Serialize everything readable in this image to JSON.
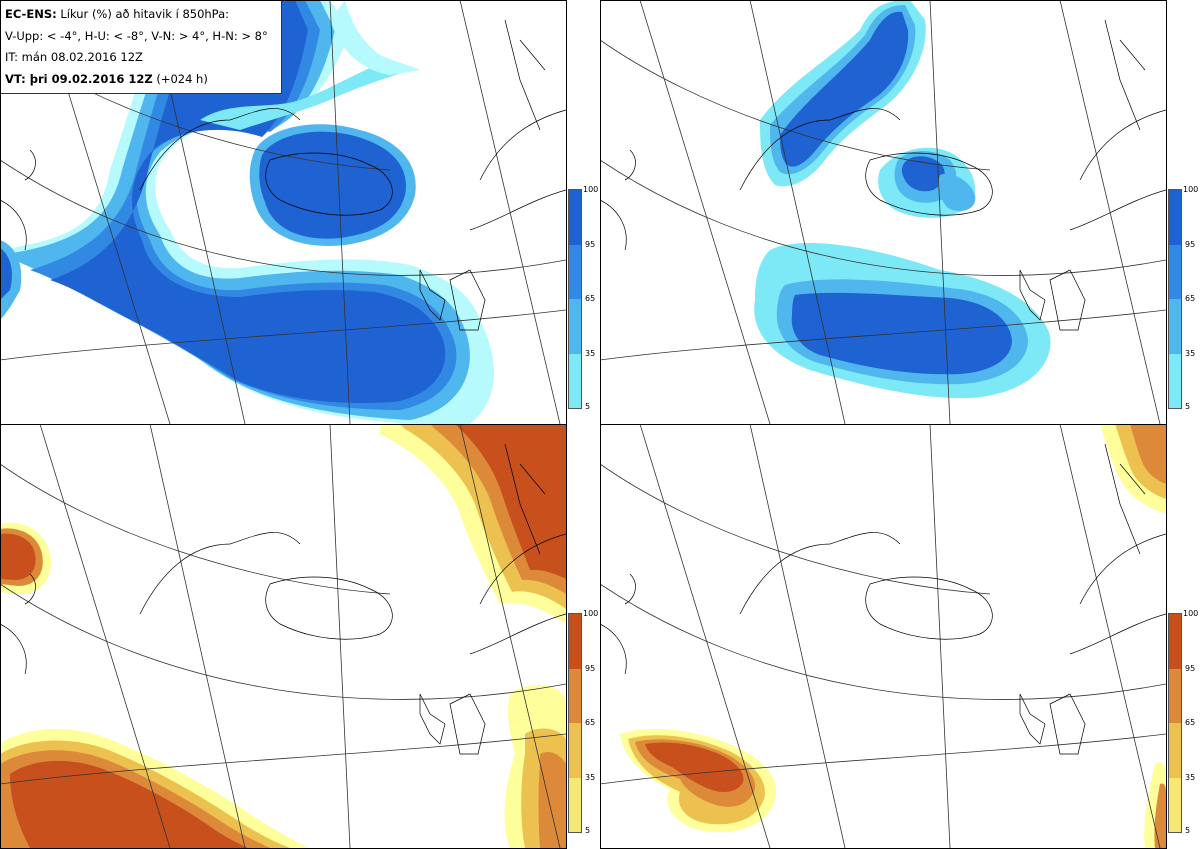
{
  "header": {
    "line1_bold": "EC-ENS:",
    "line1_rest": "Líkur (%) að hitavik í 850hPa:",
    "line2": "V-Upp: < -4°, H-U: < -8°, V-N: > 4°, H-N: > 8°",
    "line3": "IT: mán 08.02.2016 12Z",
    "line4_bold": "VT: þri 09.02.2016 12Z",
    "line4_rest": "(+024 h)"
  },
  "colorbar": {
    "ticks": [
      "100",
      "95",
      "65",
      "35",
      "5"
    ],
    "cold_colors": [
      "#1f63d2",
      "#3289e3",
      "#4fb6ee",
      "#7de8f6",
      "#b7fafd"
    ],
    "warm_colors": [
      "#c8501c",
      "#dc8a3a",
      "#ecc150",
      "#f6e874",
      "#fefe9a"
    ]
  },
  "panels": [
    {
      "id": "top-left",
      "scheme": "cold"
    },
    {
      "id": "top-right",
      "scheme": "cold"
    },
    {
      "id": "bottom-left",
      "scheme": "warm"
    },
    {
      "id": "bottom-right",
      "scheme": "warm"
    }
  ]
}
